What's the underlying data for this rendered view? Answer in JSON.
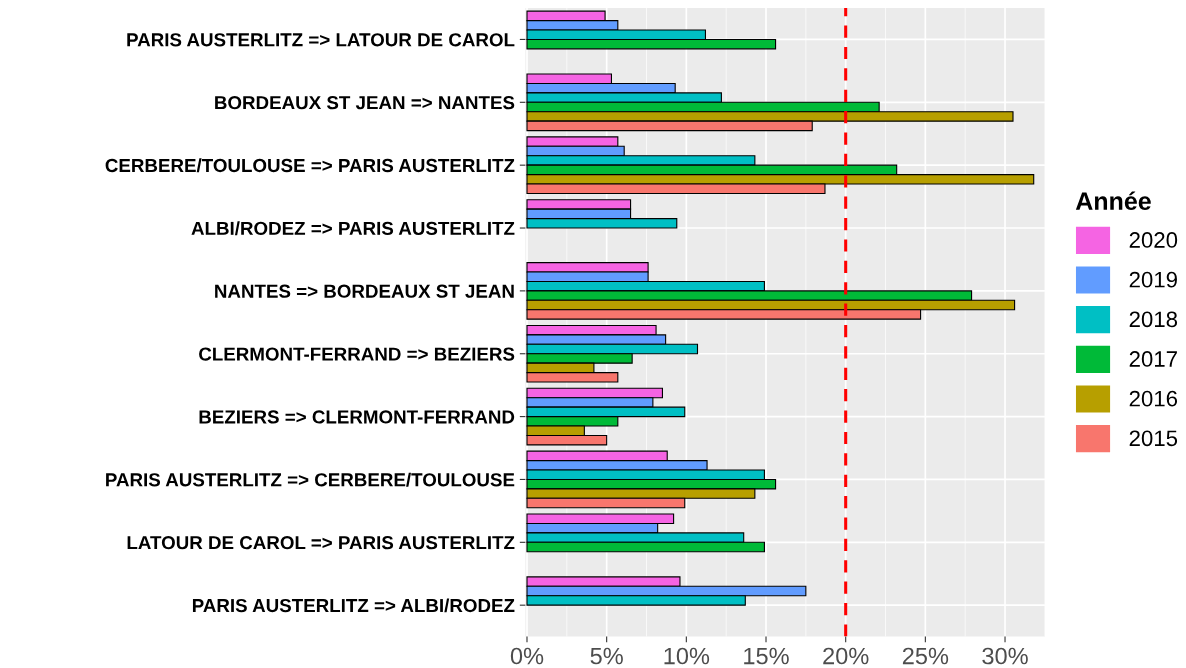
{
  "chart_data": {
    "type": "bar",
    "orientation": "horizontal",
    "legend_title": "Année",
    "legend": "right",
    "grid": true,
    "categories": [
      "PARIS AUSTERLITZ => LATOUR DE CAROL",
      "BORDEAUX ST JEAN => NANTES",
      "CERBERE/TOULOUSE => PARIS AUSTERLITZ",
      "ALBI/RODEZ => PARIS AUSTERLITZ",
      "NANTES => BORDEAUX ST JEAN",
      "CLERMONT-FERRAND => BEZIERS",
      "BEZIERS => CLERMONT-FERRAND",
      "PARIS AUSTERLITZ => CERBERE/TOULOUSE",
      "LATOUR DE CAROL => PARIS AUSTERLITZ",
      "PARIS AUSTERLITZ => ALBI/RODEZ"
    ],
    "series": [
      {
        "name": "2020",
        "color": "#f564e3",
        "values": [
          4.9,
          5.3,
          5.7,
          6.5,
          7.6,
          8.1,
          8.5,
          8.8,
          9.2,
          9.6
        ]
      },
      {
        "name": "2019",
        "color": "#619cff",
        "values": [
          5.7,
          9.3,
          6.1,
          6.5,
          7.6,
          8.7,
          7.9,
          11.3,
          8.2,
          17.5
        ]
      },
      {
        "name": "2018",
        "color": "#00bfc4",
        "values": [
          11.2,
          12.2,
          14.3,
          9.4,
          14.9,
          10.7,
          9.9,
          14.9,
          13.6,
          13.7
        ]
      },
      {
        "name": "2017",
        "color": "#00ba38",
        "values": [
          15.6,
          22.1,
          23.2,
          null,
          27.9,
          6.6,
          5.7,
          15.6,
          14.9,
          null
        ]
      },
      {
        "name": "2016",
        "color": "#b79f00",
        "values": [
          null,
          30.5,
          31.8,
          null,
          30.6,
          4.2,
          3.6,
          14.3,
          null,
          null
        ]
      },
      {
        "name": "2015",
        "color": "#f8766d",
        "values": [
          null,
          17.9,
          18.7,
          null,
          24.7,
          5.7,
          5.0,
          9.9,
          null,
          null
        ]
      }
    ],
    "xlim": [
      -0.1,
      32.5
    ],
    "xticks": [
      {
        "value": 0,
        "label": "0%"
      },
      {
        "value": 5,
        "label": "5%"
      },
      {
        "value": 10,
        "label": "10%"
      },
      {
        "value": 15,
        "label": "15%"
      },
      {
        "value": 20,
        "label": "20%"
      },
      {
        "value": 25,
        "label": "25%"
      },
      {
        "value": 30,
        "label": "30%"
      }
    ],
    "ref_lines": [
      {
        "axis": "x",
        "value": 20,
        "color": "#ff0000",
        "line_style": "dashed"
      }
    ]
  }
}
